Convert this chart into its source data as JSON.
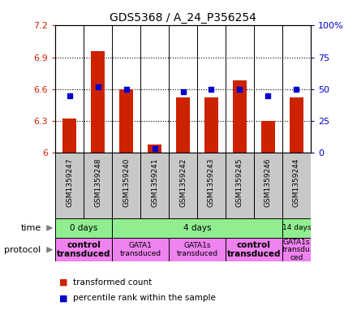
{
  "title": "GDS5368 / A_24_P356254",
  "samples": [
    "GSM1359247",
    "GSM1359248",
    "GSM1359240",
    "GSM1359241",
    "GSM1359242",
    "GSM1359243",
    "GSM1359245",
    "GSM1359246",
    "GSM1359244"
  ],
  "red_values": [
    6.32,
    6.96,
    6.6,
    6.08,
    6.52,
    6.52,
    6.68,
    6.3,
    6.52
  ],
  "blue_values": [
    45,
    52,
    50,
    3,
    48,
    50,
    50,
    45,
    50
  ],
  "ylim_left": [
    6.0,
    7.2
  ],
  "ylim_right": [
    0,
    100
  ],
  "yticks_left": [
    6.0,
    6.3,
    6.6,
    6.9,
    7.2
  ],
  "yticks_right": [
    0,
    25,
    50,
    75,
    100
  ],
  "ytick_labels_left": [
    "6",
    "6.3",
    "6.6",
    "6.9",
    "7.2"
  ],
  "ytick_labels_right": [
    "0",
    "25",
    "50",
    "75",
    "100%"
  ],
  "red_color": "#cc2200",
  "blue_color": "#0000cc",
  "bar_base": 6.0,
  "time_groups": [
    {
      "label": "0 days",
      "start": 0,
      "end": 2,
      "color": "#90ee90"
    },
    {
      "label": "4 days",
      "start": 2,
      "end": 8,
      "color": "#90ee90"
    },
    {
      "label": "14 days",
      "start": 8,
      "end": 9,
      "color": "#90ee90"
    }
  ],
  "protocol_groups": [
    {
      "label": "control\ntransduced",
      "start": 0,
      "end": 2,
      "color": "#ee82ee",
      "bold": true
    },
    {
      "label": "GATA1\ntransduced",
      "start": 2,
      "end": 4,
      "color": "#ee82ee",
      "bold": false
    },
    {
      "label": "GATA1s\ntransduced",
      "start": 4,
      "end": 6,
      "color": "#ee82ee",
      "bold": false
    },
    {
      "label": "control\ntransduced",
      "start": 6,
      "end": 8,
      "color": "#ee82ee",
      "bold": true
    },
    {
      "label": "GATA1s\ntransdu\nced",
      "start": 8,
      "end": 9,
      "color": "#ee82ee",
      "bold": false
    }
  ],
  "bg_color": "#ffffff",
  "bar_width": 0.5,
  "blue_marker_size": 5,
  "label_row_color": "#c8c8c8"
}
